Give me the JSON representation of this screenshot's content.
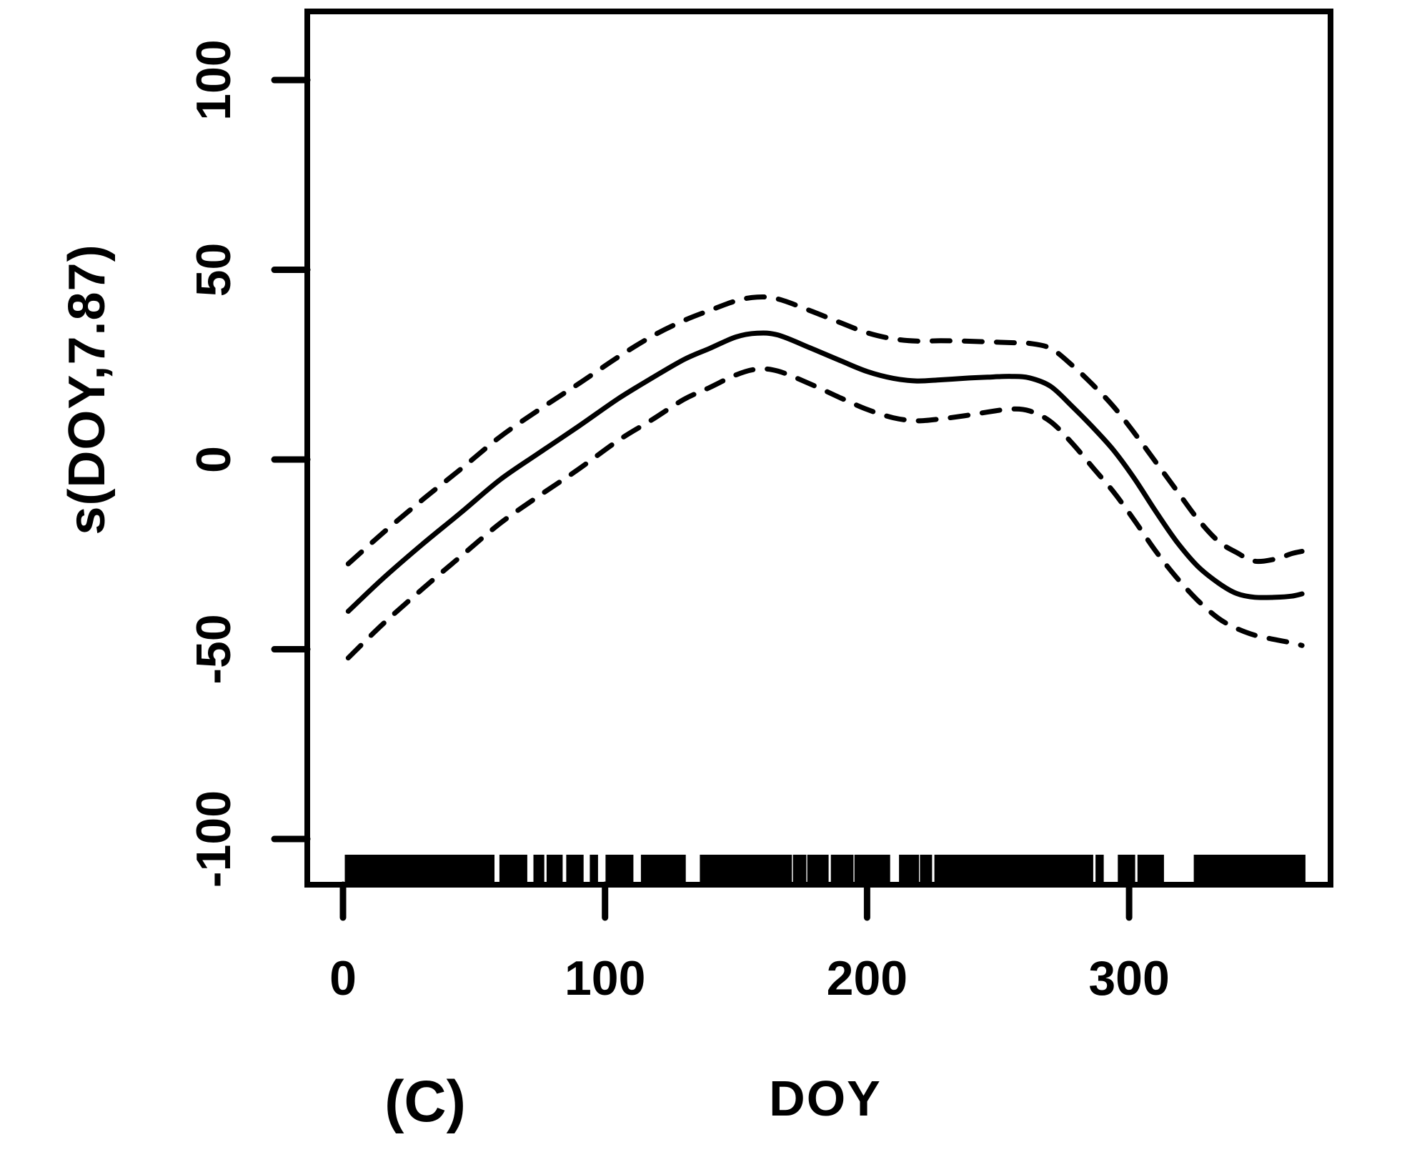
{
  "figure": {
    "panel_label": "(C)",
    "background_color": "#ffffff",
    "line_color": "#000000",
    "x_axis": {
      "label": "DOY",
      "ticks": [
        "0",
        "100",
        "200",
        "300"
      ]
    },
    "y_axis": {
      "label": "s(DOY,7.87)",
      "ticks": [
        "100",
        "50",
        "0",
        "-50",
        "-100"
      ]
    }
  },
  "chart_data": {
    "type": "line",
    "title": "",
    "xlabel": "DOY",
    "ylabel": "s(DOY,7.87)",
    "xlim": [
      -13,
      377
    ],
    "ylim": [
      -112,
      118
    ],
    "x_ticks": [
      0,
      100,
      200,
      300
    ],
    "y_ticks": [
      100,
      50,
      0,
      -50,
      -100
    ],
    "grid": false,
    "legend": "none",
    "x": [
      2,
      15,
      30,
      45,
      60,
      75,
      90,
      105,
      118,
      130,
      140,
      150,
      158,
      166,
      178,
      190,
      200,
      210,
      219,
      228,
      237,
      246,
      255,
      262,
      270,
      278,
      286,
      294,
      302,
      310,
      318,
      326,
      334,
      341,
      348,
      356,
      362,
      366
    ],
    "series": [
      {
        "name": "smooth-fit",
        "style": "solid",
        "values": [
          -40,
          -31.5,
          -22.5,
          -14,
          -5.3,
          1.8,
          8.8,
          16.0,
          21.5,
          26.3,
          29.3,
          32.3,
          33.3,
          32.8,
          29.5,
          26.0,
          23.2,
          21.4,
          20.7,
          21.0,
          21.4,
          21.7,
          21.9,
          21.5,
          19.3,
          14.2,
          8.6,
          2.5,
          -5.0,
          -13.5,
          -21.5,
          -28.0,
          -32.5,
          -35.3,
          -36.3,
          -36.3,
          -36.0,
          -35.4
        ]
      },
      {
        "name": "upper-ci",
        "style": "dashed",
        "values": [
          -27.5,
          -19.5,
          -10.8,
          -2.5,
          6.0,
          13.2,
          20.0,
          27.0,
          32.5,
          36.6,
          39.3,
          41.8,
          42.8,
          42.3,
          39.3,
          36.0,
          33.4,
          31.8,
          31.2,
          31.3,
          31.2,
          31.0,
          30.8,
          30.6,
          29.3,
          25.0,
          19.8,
          14.0,
          7.0,
          -0.5,
          -8.0,
          -15.5,
          -21.5,
          -24.5,
          -26.8,
          -26.2,
          -24.8,
          -24.2
        ]
      },
      {
        "name": "lower-ci",
        "style": "dashed",
        "values": [
          -52.3,
          -43.5,
          -34.3,
          -25.5,
          -16.8,
          -9.5,
          -2.5,
          5.0,
          10.5,
          15.8,
          19.0,
          22.3,
          23.8,
          23.3,
          20.0,
          16.2,
          13.2,
          11.0,
          10.2,
          10.7,
          11.5,
          12.5,
          13.3,
          12.8,
          10.0,
          4.5,
          -2.0,
          -8.5,
          -16.0,
          -24.0,
          -31.0,
          -37.0,
          -41.8,
          -44.5,
          -46.3,
          -47.5,
          -48.3,
          -49.0
        ]
      }
    ],
    "rug_intervals_doy": [
      [
        1.5,
        57
      ],
      [
        60.5,
        69.5
      ],
      [
        73.5,
        76
      ],
      [
        78.5,
        83
      ],
      [
        86,
        88
      ],
      [
        89.5,
        91
      ],
      [
        95,
        96.5
      ],
      [
        101,
        107
      ],
      [
        108.5,
        110
      ],
      [
        114.5,
        124
      ],
      [
        125.5,
        130
      ],
      [
        137,
        151.5
      ],
      [
        153,
        159
      ],
      [
        160,
        170.5
      ],
      [
        172.5,
        176
      ],
      [
        178,
        180.5
      ],
      [
        182,
        184.5
      ],
      [
        187,
        189
      ],
      [
        190.5,
        194
      ],
      [
        196,
        208
      ],
      [
        213,
        215
      ],
      [
        216.5,
        219
      ],
      [
        221,
        224
      ],
      [
        226.5,
        227.5
      ],
      [
        229,
        282
      ],
      [
        283.5,
        285.5
      ],
      [
        288,
        289.5
      ],
      [
        296.5,
        298
      ],
      [
        299.5,
        301.5
      ],
      [
        304,
        306.5
      ],
      [
        308,
        309.5
      ],
      [
        310.5,
        312.5
      ],
      [
        325.5,
        329
      ],
      [
        330,
        332.5
      ],
      [
        333.5,
        334.5
      ],
      [
        335.5,
        336.5
      ],
      [
        337.5,
        366.5
      ]
    ]
  }
}
